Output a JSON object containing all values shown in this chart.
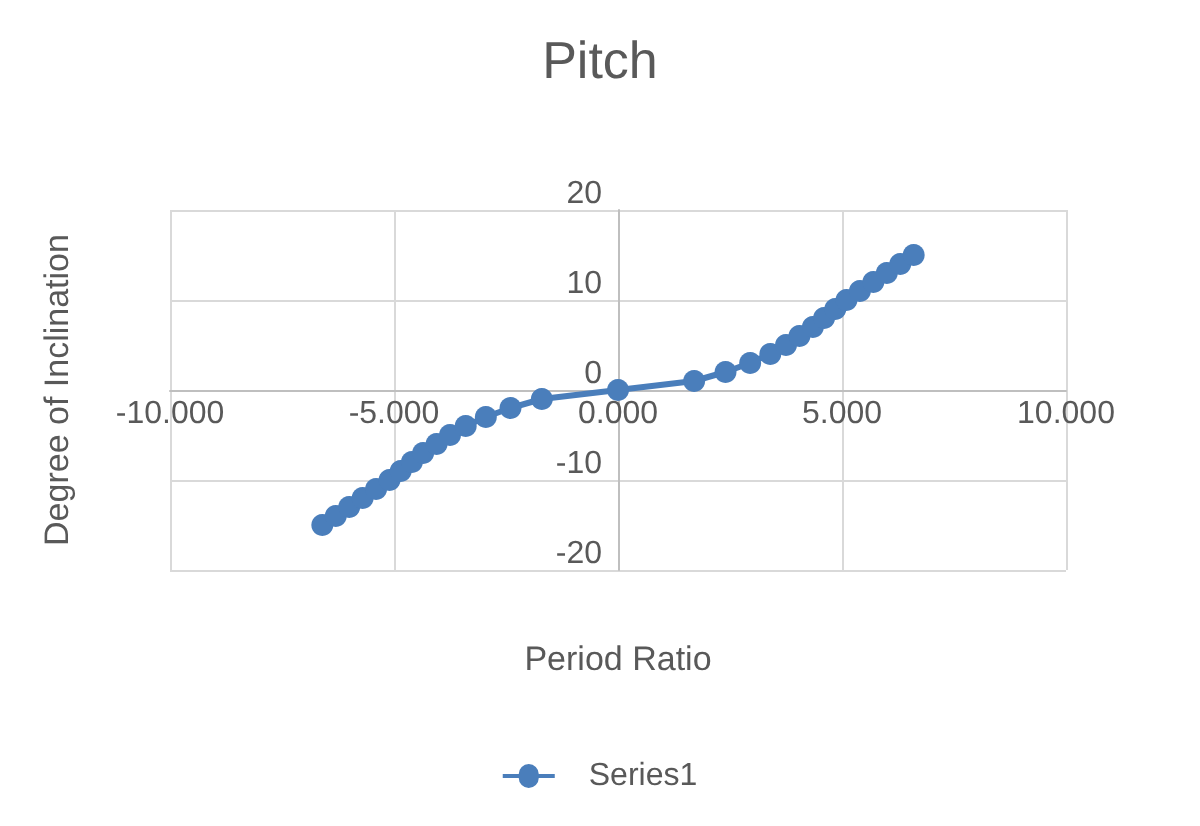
{
  "chart_data": {
    "type": "line",
    "title": "Pitch",
    "xlabel": "Period Ratio",
    "ylabel": "Degree of Inclination",
    "series": [
      {
        "name": "Series1",
        "color": "#4a7ebb",
        "x": [
          -6.6,
          -6.3,
          -6.0,
          -5.7,
          -5.4,
          -5.1,
          -4.85,
          -4.6,
          -4.35,
          -4.05,
          -3.75,
          -3.4,
          -2.95,
          -2.4,
          -1.7,
          0,
          1.7,
          2.4,
          2.95,
          3.4,
          3.75,
          4.05,
          4.35,
          4.6,
          4.85,
          5.1,
          5.4,
          5.7,
          6.0,
          6.3,
          6.6
        ],
        "values": [
          -15,
          -14,
          -13,
          -12,
          -11,
          -10,
          -9,
          -8,
          -7,
          -6,
          -5,
          -4,
          -3,
          -2,
          -1,
          0,
          1,
          2,
          3,
          4,
          5,
          6,
          7,
          8,
          9,
          10,
          11,
          12,
          13,
          14,
          15
        ]
      }
    ],
    "xlim": [
      -10,
      10
    ],
    "xticks": [
      {
        "value": -10,
        "label": "-10.000"
      },
      {
        "value": -5,
        "label": "-5.000"
      },
      {
        "value": 0,
        "label": "0.000"
      },
      {
        "value": 5,
        "label": "5.000"
      },
      {
        "value": 10,
        "label": "10.000"
      }
    ],
    "ylim": [
      -20,
      20
    ],
    "yticks": [
      -20,
      -10,
      0,
      10,
      20
    ],
    "grid": true,
    "legend": "bottom",
    "marker": "circle",
    "line_style": "solid"
  }
}
